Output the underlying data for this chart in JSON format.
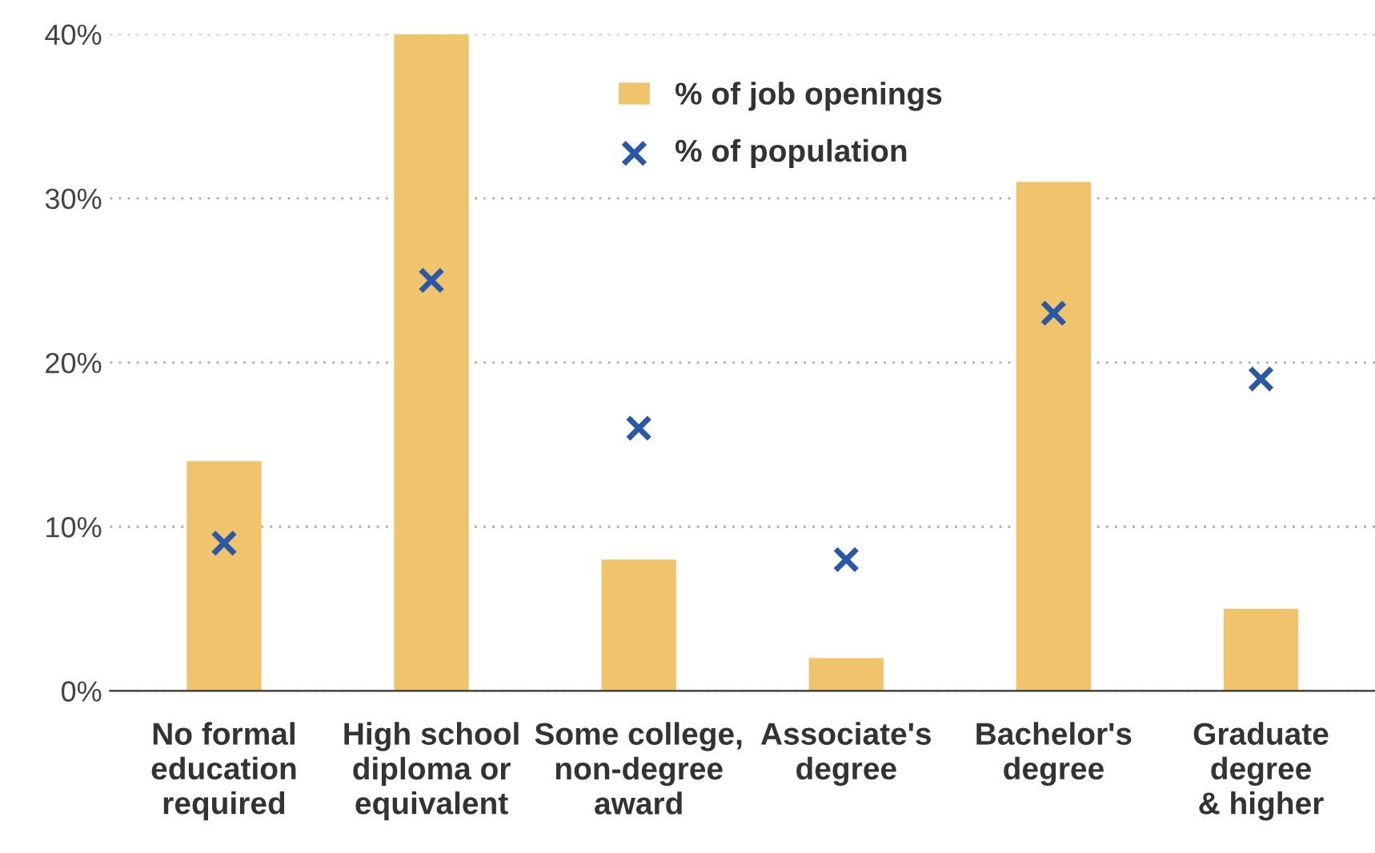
{
  "chart_data": {
    "type": "bar",
    "categories": [
      "No formal\neducation\nrequired",
      "High school\ndiploma or\nequivalent",
      "Some college,\nnon-degree\naward",
      "Associate's\ndegree",
      "Bachelor's\ndegree",
      "Graduate\ndegree\n& higher"
    ],
    "series": [
      {
        "name": "% of job openings",
        "color": "#efc46d",
        "values": [
          14,
          40,
          8,
          2,
          31,
          5
        ]
      },
      {
        "name": "% of population",
        "type": "scatter",
        "marker": "cross",
        "color": "#2b58a6",
        "values": [
          9,
          25,
          16,
          8,
          23,
          19
        ]
      }
    ],
    "ylim": [
      0,
      40
    ],
    "yticks": [
      {
        "value": 0,
        "label": "0%"
      },
      {
        "value": 10,
        "label": "10%"
      },
      {
        "value": 20,
        "label": "20%"
      },
      {
        "value": 30,
        "label": "30%"
      },
      {
        "value": 40,
        "label": "40%"
      }
    ],
    "grid": "y",
    "legend": "top"
  }
}
